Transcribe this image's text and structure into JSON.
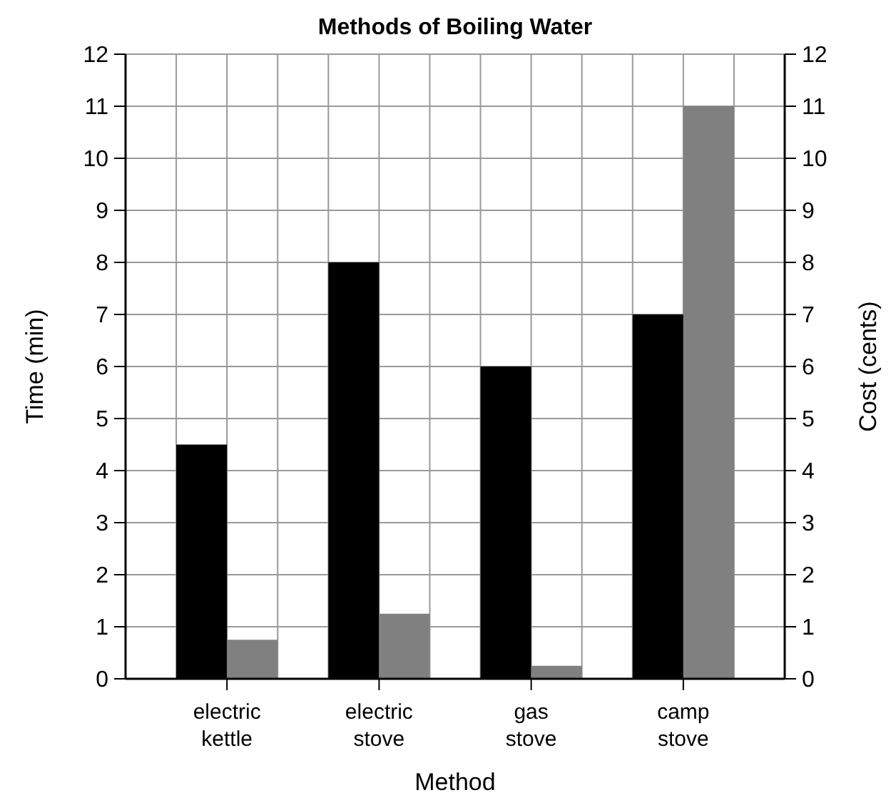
{
  "chart_data": {
    "type": "bar",
    "title": "Methods of Boiling Water",
    "xlabel": "Method",
    "ylabel": "Time (min)",
    "y2label": "Cost (cents)",
    "categories": [
      "electric\nkettle",
      "electric\nstove",
      "gas\nstove",
      "camp\nstove"
    ],
    "series": [
      {
        "color": "#000000",
        "values": [
          4.5,
          8,
          6,
          7
        ]
      },
      {
        "color": "#808080",
        "values": [
          0.75,
          1.25,
          0.25,
          11
        ],
        "axis": "y2"
      }
    ],
    "ylim": [
      0,
      12
    ],
    "yticks": [
      0,
      1,
      2,
      3,
      4,
      5,
      6,
      7,
      8,
      9,
      10,
      11,
      12
    ],
    "y2lim": [
      0,
      12
    ],
    "y2ticks": [
      0,
      1,
      2,
      3,
      4,
      5,
      6,
      7,
      8,
      9,
      10,
      11,
      12
    ],
    "grid": true
  }
}
